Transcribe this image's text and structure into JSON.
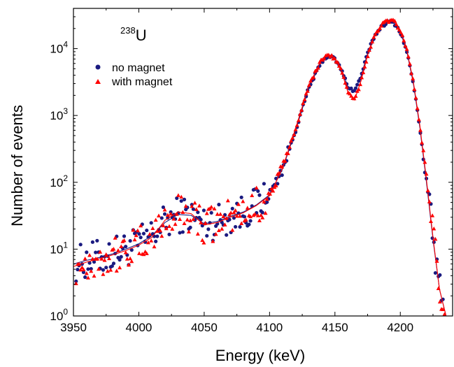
{
  "chart_data": {
    "type": "scatter",
    "title": "",
    "isotope": {
      "mass": "238",
      "symbol": "U"
    },
    "xlabel": "Energy (keV)",
    "ylabel": "Number of events",
    "xlim": [
      3950,
      4240
    ],
    "ylim": [
      1,
      40000
    ],
    "yscale": "log",
    "grid": false,
    "legend_position": "top-left",
    "x_ticks": [
      3950,
      4000,
      4050,
      4100,
      4150,
      4200
    ],
    "x_tick_labels": [
      "3950",
      "4000",
      "4050",
      "4100",
      "4150",
      "4200"
    ],
    "y_ticks": [
      1,
      10,
      100,
      1000,
      10000
    ],
    "y_tick_labels": [
      {
        "base": "10",
        "exp": "0"
      },
      {
        "base": "10",
        "exp": "1"
      },
      {
        "base": "10",
        "exp": "2"
      },
      {
        "base": "10",
        "exp": "3"
      },
      {
        "base": "10",
        "exp": "4"
      }
    ],
    "series": [
      {
        "name": "no magnet",
        "marker": "circle",
        "color": "#1a1a80",
        "fit_x": [
          3950,
          3960,
          3970,
          3980,
          3990,
          4000,
          4010,
          4020,
          4030,
          4040,
          4050,
          4060,
          4070,
          4080,
          4090,
          4100,
          4110,
          4120,
          4130,
          4140,
          4145,
          4150,
          4155,
          4160,
          4165,
          4170,
          4175,
          4180,
          4185,
          4190,
          4195,
          4200,
          4205,
          4210,
          4215,
          4220,
          4225,
          4230,
          4235
        ],
        "fit_y": [
          6,
          6.8,
          7.5,
          8.5,
          10,
          12,
          16,
          25,
          33,
          32,
          24,
          26,
          31,
          36,
          46,
          65,
          160,
          600,
          2600,
          6500,
          7800,
          7000,
          4800,
          2700,
          2300,
          3900,
          8500,
          15000,
          21000,
          25000,
          24500,
          18000,
          9000,
          3000,
          650,
          100,
          14,
          2.5,
          1
        ]
      },
      {
        "name": "with magnet",
        "marker": "triangle",
        "color": "#ff0000",
        "fit_x": [
          3950,
          3960,
          3970,
          3980,
          3990,
          4000,
          4010,
          4020,
          4030,
          4040,
          4050,
          4060,
          4070,
          4080,
          4090,
          4100,
          4110,
          4120,
          4130,
          4140,
          4145,
          4150,
          4155,
          4160,
          4165,
          4170,
          4175,
          4180,
          4185,
          4190,
          4195,
          4200,
          4205,
          4210,
          4215,
          4220,
          4225,
          4230,
          4235
        ],
        "fit_y": [
          5.5,
          6.4,
          7.2,
          8.2,
          9.5,
          11.5,
          15,
          27,
          36,
          34,
          23,
          25,
          30,
          35,
          45,
          63,
          165,
          650,
          2800,
          7000,
          8200,
          7200,
          4600,
          2200,
          1700,
          3300,
          8000,
          15500,
          22000,
          26500,
          26000,
          19000,
          9500,
          3200,
          700,
          110,
          15,
          2.5,
          1
        ]
      }
    ]
  }
}
